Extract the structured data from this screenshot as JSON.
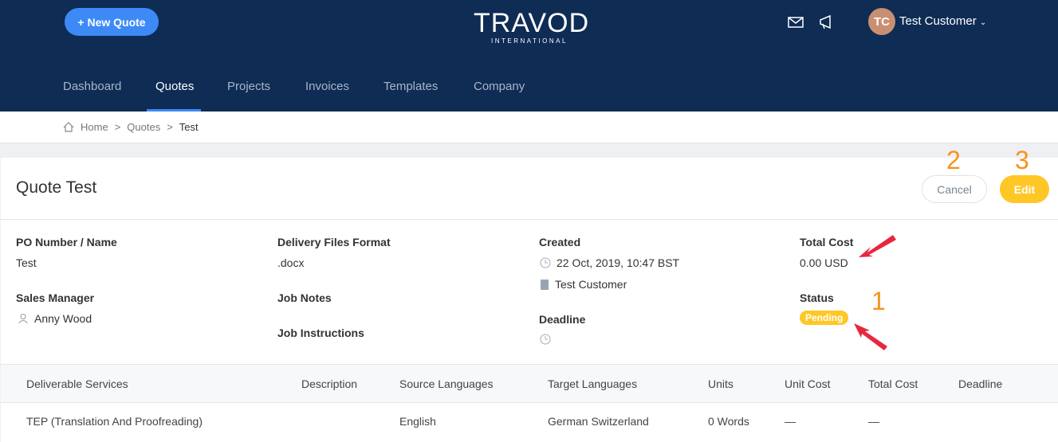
{
  "header": {
    "new_quote": "+ New Quote",
    "logo": "TRAVOD",
    "logo_sub": "INTERNATIONAL",
    "avatar_initials": "TC",
    "user_name": "Test Customer",
    "nav": [
      "Dashboard",
      "Quotes",
      "Projects",
      "Invoices",
      "Templates",
      "Company"
    ],
    "active_nav": "Quotes"
  },
  "breadcrumb": [
    "Home",
    "Quotes",
    "Test"
  ],
  "quote": {
    "title": "Quote Test",
    "cancel": "Cancel",
    "edit": "Edit",
    "po_label": "PO Number / Name",
    "po_value": "Test",
    "sales_label": "Sales Manager",
    "sales_value": "Anny Wood",
    "format_label": "Delivery Files Format",
    "format_value": ".docx",
    "notes_label": "Job Notes",
    "instructions_label": "Job Instructions",
    "created_label": "Created",
    "created_value": "22 Oct, 2019, 10:47 BST",
    "created_by": "Test Customer",
    "deadline_label": "Deadline",
    "total_label": "Total Cost",
    "total_value": "0.00 USD",
    "status_label": "Status",
    "status_value": "Pending"
  },
  "table": {
    "headers": [
      "Deliverable Services",
      "Description",
      "Source Languages",
      "Target Languages",
      "Units",
      "Unit Cost",
      "Total Cost",
      "Deadline"
    ],
    "rows": [
      [
        "TEP (Translation And Proofreading)",
        "",
        "English",
        "German Switzerland",
        "0 Words",
        "—",
        "—",
        ""
      ]
    ]
  },
  "annotations": [
    "1",
    "2",
    "3"
  ],
  "colors": {
    "header": "#0e2c54",
    "primary": "#3d8af7",
    "warning": "#ffc726",
    "annotation": "#f7931e",
    "arrow": "#e8273f"
  }
}
